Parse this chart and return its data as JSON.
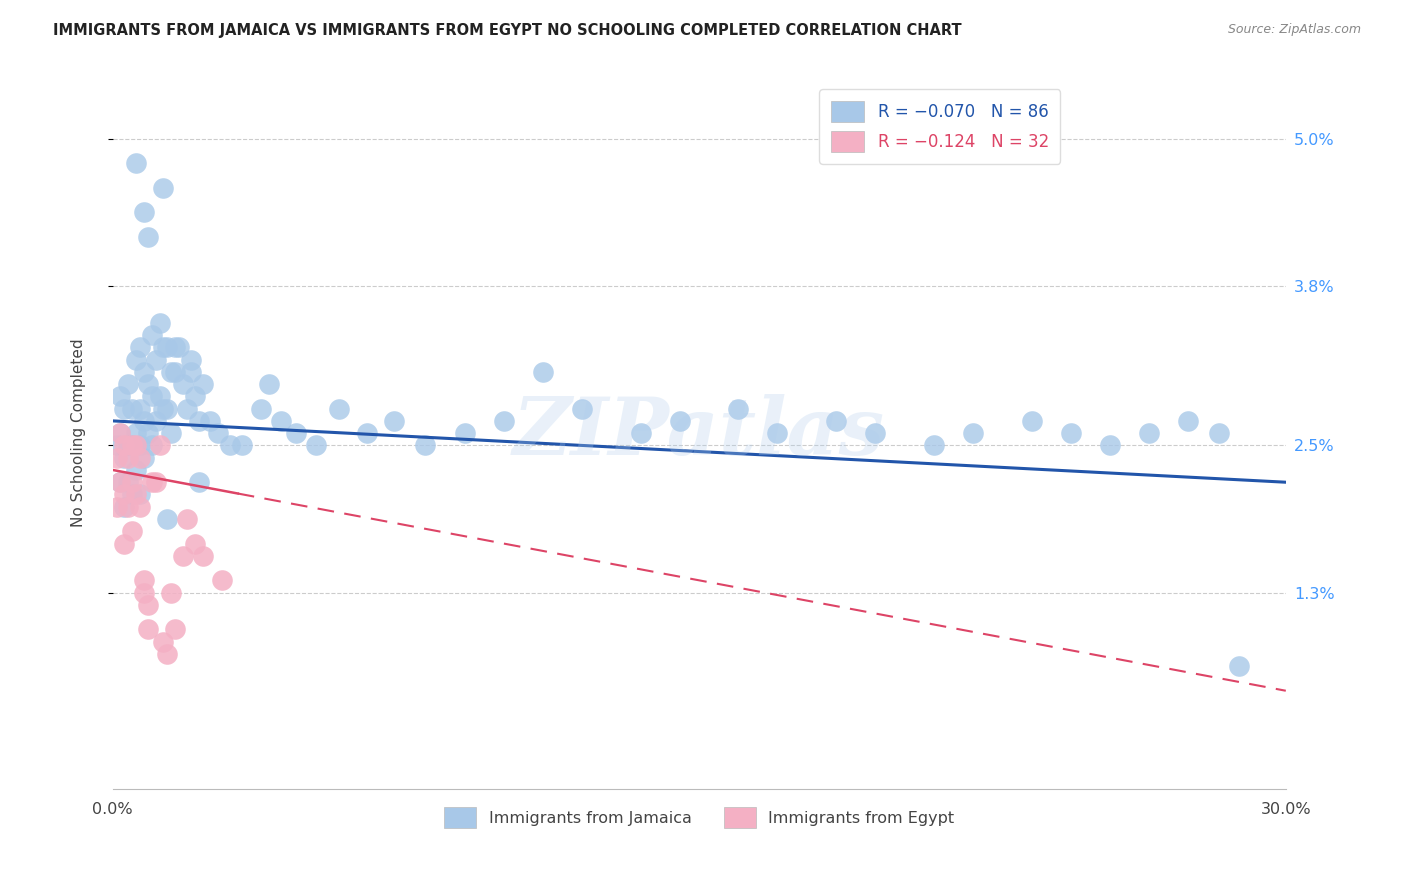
{
  "title": "IMMIGRANTS FROM JAMAICA VS IMMIGRANTS FROM EGYPT NO SCHOOLING COMPLETED CORRELATION CHART",
  "source": "Source: ZipAtlas.com",
  "ylabel": "No Schooling Completed",
  "r_jamaica": -0.07,
  "n_jamaica": 86,
  "r_egypt": -0.124,
  "n_egypt": 32,
  "color_jamaica": "#a8c8e8",
  "color_egypt": "#f4b0c4",
  "line_color_jamaica": "#2255aa",
  "line_color_egypt": "#dd4466",
  "watermark": "ZIPatlas",
  "background_color": "#ffffff",
  "grid_color": "#cccccc",
  "xlim": [
    0.0,
    0.3
  ],
  "ylim": [
    -0.003,
    0.055
  ],
  "ytick_positions": [
    0.013,
    0.025,
    0.038,
    0.05
  ],
  "ytick_labels": [
    "1.3%",
    "2.5%",
    "3.8%",
    "5.0%"
  ],
  "xtick_positions": [
    0.0,
    0.05,
    0.1,
    0.15,
    0.2,
    0.25,
    0.3
  ],
  "xtick_labels": [
    "0.0%",
    "",
    "",
    "",
    "",
    "",
    "30.0%"
  ],
  "jam_x": [
    0.001,
    0.002,
    0.002,
    0.002,
    0.003,
    0.003,
    0.003,
    0.004,
    0.004,
    0.004,
    0.005,
    0.005,
    0.005,
    0.006,
    0.006,
    0.006,
    0.007,
    0.007,
    0.007,
    0.007,
    0.008,
    0.008,
    0.008,
    0.009,
    0.009,
    0.01,
    0.01,
    0.01,
    0.011,
    0.011,
    0.012,
    0.012,
    0.013,
    0.013,
    0.014,
    0.014,
    0.015,
    0.015,
    0.016,
    0.017,
    0.018,
    0.019,
    0.02,
    0.021,
    0.022,
    0.023,
    0.025,
    0.027,
    0.03,
    0.033,
    0.038,
    0.04,
    0.043,
    0.047,
    0.052,
    0.058,
    0.065,
    0.072,
    0.08,
    0.09,
    0.1,
    0.11,
    0.12,
    0.135,
    0.145,
    0.16,
    0.17,
    0.185,
    0.195,
    0.21,
    0.22,
    0.235,
    0.245,
    0.255,
    0.265,
    0.275,
    0.283,
    0.288,
    0.013,
    0.008,
    0.009,
    0.016,
    0.02,
    0.022,
    0.014,
    0.006
  ],
  "jam_y": [
    0.025,
    0.029,
    0.022,
    0.026,
    0.028,
    0.024,
    0.02,
    0.03,
    0.025,
    0.022,
    0.028,
    0.025,
    0.021,
    0.032,
    0.026,
    0.023,
    0.033,
    0.028,
    0.025,
    0.021,
    0.031,
    0.027,
    0.024,
    0.03,
    0.026,
    0.034,
    0.029,
    0.025,
    0.032,
    0.027,
    0.035,
    0.029,
    0.033,
    0.028,
    0.033,
    0.028,
    0.031,
    0.026,
    0.031,
    0.033,
    0.03,
    0.028,
    0.031,
    0.029,
    0.027,
    0.03,
    0.027,
    0.026,
    0.025,
    0.025,
    0.028,
    0.03,
    0.027,
    0.026,
    0.025,
    0.028,
    0.026,
    0.027,
    0.025,
    0.026,
    0.027,
    0.031,
    0.028,
    0.026,
    0.027,
    0.028,
    0.026,
    0.027,
    0.026,
    0.025,
    0.026,
    0.027,
    0.026,
    0.025,
    0.026,
    0.027,
    0.026,
    0.007,
    0.046,
    0.044,
    0.042,
    0.033,
    0.032,
    0.022,
    0.019,
    0.048
  ],
  "egy_x": [
    0.001,
    0.001,
    0.002,
    0.002,
    0.003,
    0.003,
    0.003,
    0.004,
    0.004,
    0.005,
    0.005,
    0.005,
    0.006,
    0.006,
    0.007,
    0.007,
    0.008,
    0.008,
    0.009,
    0.009,
    0.01,
    0.011,
    0.012,
    0.013,
    0.014,
    0.015,
    0.016,
    0.018,
    0.019,
    0.021,
    0.023,
    0.028
  ],
  "egy_y": [
    0.024,
    0.02,
    0.026,
    0.022,
    0.025,
    0.021,
    0.017,
    0.024,
    0.02,
    0.025,
    0.022,
    0.018,
    0.025,
    0.021,
    0.024,
    0.02,
    0.014,
    0.013,
    0.012,
    0.01,
    0.022,
    0.022,
    0.025,
    0.009,
    0.008,
    0.013,
    0.01,
    0.016,
    0.019,
    0.017,
    0.016,
    0.014
  ],
  "jam_line_x": [
    0.0,
    0.3
  ],
  "jam_line_y": [
    0.027,
    0.022
  ],
  "egy_line_x": [
    0.0,
    0.3
  ],
  "egy_line_y": [
    0.023,
    0.005
  ]
}
